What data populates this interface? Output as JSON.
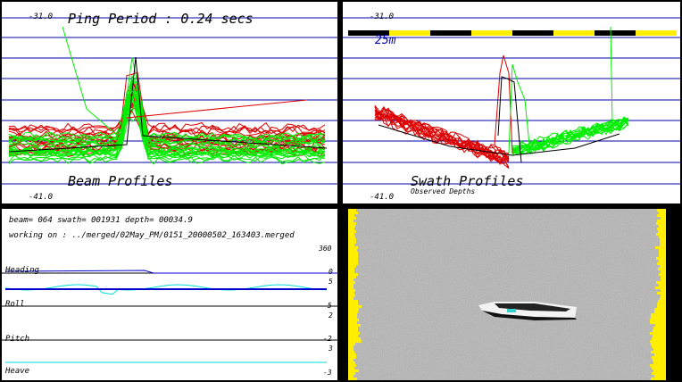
{
  "beam_panel": {
    "title": "Ping Period : 0.24 secs",
    "depth_top": "-31.0",
    "depth_bottom": "-41.0",
    "footer": "Beam Profiles"
  },
  "swath_panel": {
    "depth_top": "-31.0",
    "depth_bottom": "-41.0",
    "scale_label": "25m",
    "footer": "Swath Profiles",
    "subfooter": "Observed Depths"
  },
  "attitude_panel": {
    "status_line": "beam= 064 swath= 001931 depth= 00034.9",
    "working_line": "working on : ../merged/02May_PM/0151_20000502_163403.merged",
    "heading": {
      "label": "Heading",
      "max": "360",
      "min": "0"
    },
    "roll": {
      "label": "Roll",
      "max": "5",
      "min": "-5"
    },
    "pitch": {
      "label": "Pitch",
      "max": "2",
      "min": "-2"
    },
    "heave": {
      "label": "Heave",
      "max": "3",
      "min": "-3"
    }
  },
  "colors": {
    "grid": "#0000aa",
    "green": "#00ee00",
    "red": "#dd0000",
    "cyan": "#00dddd",
    "blue": "#0000cc",
    "yellow": "#ffee00"
  }
}
